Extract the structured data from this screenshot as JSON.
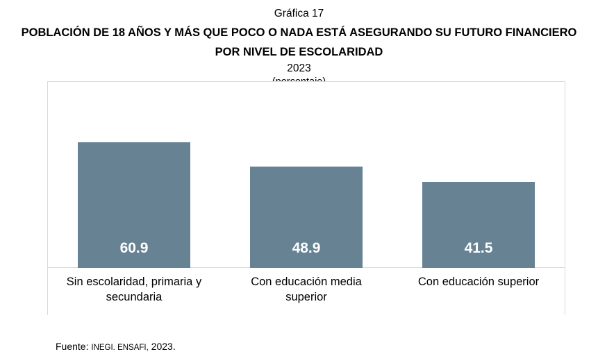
{
  "chart_data": {
    "type": "bar",
    "figure_label": "Gráfica 17",
    "title": "POBLACIÓN DE 18 AÑOS Y MÁS QUE POCO O NADA ESTÁ ASEGURANDO SU FUTURO FINANCIERO",
    "subtitle": "POR NIVEL DE ESCOLARIDAD",
    "year": "2023",
    "unit_label": "(porcentaje)",
    "categories": [
      "Sin escolaridad, primaria y secundaria",
      "Con educación media superior",
      "Con educación superior"
    ],
    "categories_wrapped": [
      "Sin escolaridad, primaria y\nsecundaria",
      "Con educación media\nsuperior",
      "Con educación superior"
    ],
    "values": [
      60.9,
      48.9,
      41.5
    ],
    "value_labels": [
      "60.9",
      "48.9",
      "41.5"
    ],
    "xlabel": "",
    "ylabel": "",
    "ylim": [
      0,
      90
    ],
    "grid": false,
    "legend": false,
    "bar_color": "#668293",
    "value_label_color": "#FFFFFF",
    "axis_line_color": "#D9D9D9",
    "frame_border_color": "#D9D9D9"
  },
  "source": {
    "prefix": "Fuente: ",
    "caps": "INEGI. ENSAFI,",
    "suffix": " 2023."
  }
}
